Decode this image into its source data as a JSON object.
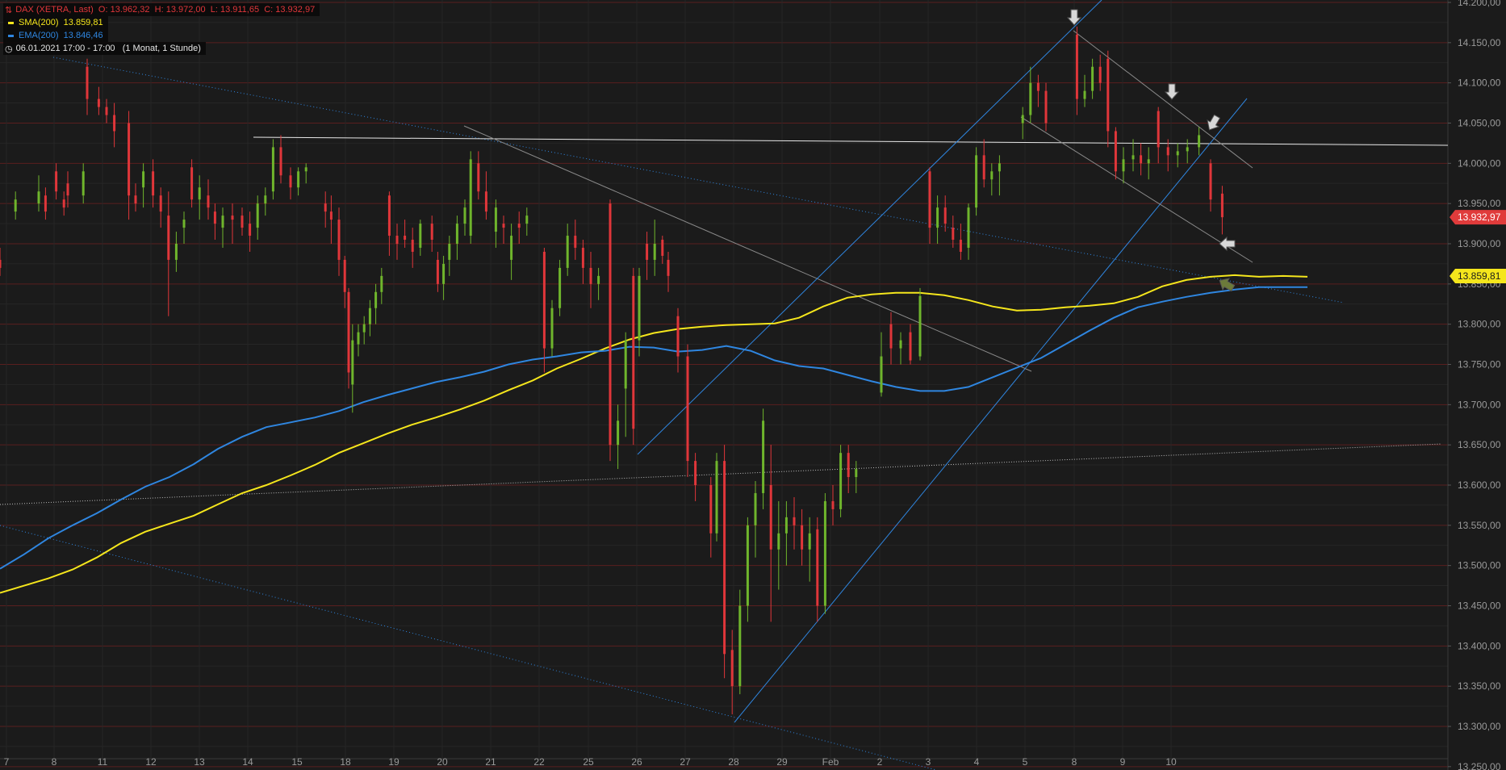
{
  "legend": {
    "instrument": "DAX (XETRA, Last)",
    "ohlc": "O: 13.962,32  H: 13.972,00  L: 13.911,65  C: 13.932,97",
    "sma_label": "SMA(200)",
    "sma_value": "13.859,81",
    "ema_label": "EMA(200)",
    "ema_value": "13.846,46",
    "period": "06.01.2021 17:00 - 17:00   (1 Monat, 1 Stunde)"
  },
  "colors": {
    "background": "#1b1b1b",
    "up": "#6fb52c",
    "down": "#e0363a",
    "sma": "#f5e61c",
    "ema": "#2f86e0",
    "price_badge": "#e03b3b",
    "sma_badge": "#f5e61c",
    "gridline": "#5a1f1f"
  },
  "chart_data": {
    "type": "candlestick",
    "title": "DAX (XETRA, Last)",
    "y_ticks": [
      "14.200,00",
      "14.150,00",
      "14.100,00",
      "14.050,00",
      "14.000,00",
      "13.950,00",
      "13.900,00",
      "13.850,00",
      "13.800,00",
      "13.750,00",
      "13.700,00",
      "13.650,00",
      "13.600,00",
      "13.550,00",
      "13.500,00",
      "13.450,00",
      "13.400,00",
      "13.350,00",
      "13.300,00",
      "13.250,00"
    ],
    "y_tick_values": [
      14200,
      14150,
      14100,
      14050,
      14000,
      13950,
      13900,
      13850,
      13800,
      13750,
      13700,
      13650,
      13600,
      13550,
      13500,
      13450,
      13400,
      13350,
      13300,
      13250
    ],
    "ylim": [
      13245,
      14208
    ],
    "x_ticks": [
      "7",
      "8",
      "11",
      "12",
      "13",
      "14",
      "15",
      "18",
      "19",
      "20",
      "21",
      "22",
      "25",
      "26",
      "27",
      "28",
      "29",
      "Feb",
      "2",
      "3",
      "4",
      "5",
      "8",
      "9",
      "10"
    ],
    "last_price": {
      "label": "13.932,97",
      "value": 13932.97
    },
    "sma_marker": {
      "label": "13.859,81",
      "value": 13859.81
    },
    "ohlc": {
      "open": 13962.32,
      "high": 13972.0,
      "low": 13911.65,
      "close": 13932.97
    },
    "series": [
      {
        "name": "SMA(200)",
        "values": [
          13466,
          13475,
          13484,
          13495,
          13510,
          13528,
          13542,
          13552,
          13562,
          13576,
          13590,
          13600,
          13612,
          13625,
          13640,
          13652,
          13664,
          13675,
          13684,
          13694,
          13705,
          13718,
          13730,
          13745,
          13757,
          13770,
          13781,
          13789,
          13794,
          13797,
          13799,
          13800,
          13801,
          13808,
          13822,
          13833,
          13837,
          13839,
          13839,
          13836,
          13830,
          13822,
          13817,
          13818,
          13821,
          13823,
          13826,
          13834,
          13847,
          13855,
          13859,
          13861,
          13859,
          13860,
          13859
        ]
      },
      {
        "name": "EMA(200)",
        "values": [
          13496,
          13514,
          13534,
          13550,
          13565,
          13582,
          13598,
          13610,
          13626,
          13645,
          13660,
          13672,
          13678,
          13684,
          13692,
          13703,
          13712,
          13720,
          13728,
          13734,
          13741,
          13750,
          13756,
          13760,
          13765,
          13767,
          13772,
          13771,
          13766,
          13768,
          13773,
          13767,
          13755,
          13748,
          13745,
          13737,
          13729,
          13722,
          13717,
          13717,
          13722,
          13734,
          13746,
          13758,
          13775,
          13792,
          13808,
          13821,
          13828,
          13834,
          13839,
          13843,
          13846,
          13846,
          13846
        ]
      }
    ],
    "candles": [
      [
        13880,
        13895,
        13860,
        13870
      ],
      [
        13940,
        13965,
        13930,
        13955
      ],
      [
        13950,
        13985,
        13940,
        13965
      ],
      [
        13960,
        13970,
        13930,
        13940
      ],
      [
        13990,
        14000,
        13955,
        13965
      ],
      [
        13955,
        13965,
        13935,
        13945
      ],
      [
        13975,
        13990,
        13945,
        13960
      ],
      [
        13960,
        14000,
        13950,
        13990
      ],
      [
        14120,
        14130,
        14060,
        14080
      ],
      [
        14080,
        14095,
        14060,
        14070
      ],
      [
        14070,
        14080,
        14050,
        14060
      ],
      [
        14060,
        14075,
        14020,
        14040
      ],
      [
        14050,
        14065,
        13930,
        13960
      ],
      [
        13960,
        13975,
        13940,
        13950
      ],
      [
        13970,
        14000,
        13945,
        13990
      ],
      [
        13990,
        14005,
        13945,
        13960
      ],
      [
        13960,
        13970,
        13920,
        13940
      ],
      [
        13935,
        13965,
        13810,
        13880
      ],
      [
        13880,
        13915,
        13865,
        13900
      ],
      [
        13920,
        13940,
        13900,
        13930
      ],
      [
        13995,
        14005,
        13945,
        13955
      ],
      [
        13955,
        13985,
        13930,
        13970
      ],
      [
        13960,
        13980,
        13930,
        13945
      ],
      [
        13940,
        13950,
        13905,
        13925
      ],
      [
        13920,
        13945,
        13895,
        13935
      ],
      [
        13935,
        13950,
        13900,
        13930
      ],
      [
        13935,
        13945,
        13910,
        13920
      ],
      [
        13925,
        13940,
        13890,
        13910
      ],
      [
        13920,
        13960,
        13905,
        13950
      ],
      [
        13950,
        13970,
        13935,
        13960
      ],
      [
        13965,
        14030,
        13955,
        14020
      ],
      [
        14020,
        14035,
        13975,
        13985
      ],
      [
        13985,
        13995,
        13955,
        13970
      ],
      [
        13970,
        13995,
        13960,
        13990
      ],
      [
        13990,
        14000,
        13975,
        13995
      ],
      [
        13950,
        13965,
        13920,
        13940
      ],
      [
        13940,
        13960,
        13900,
        13930
      ],
      [
        13930,
        13945,
        13860,
        13880
      ],
      [
        13880,
        13885,
        13820,
        13840
      ],
      [
        13840,
        13845,
        13720,
        13740
      ],
      [
        13725,
        13800,
        13690,
        13780
      ],
      [
        13775,
        13800,
        13760,
        13790
      ],
      [
        13790,
        13810,
        13775,
        13800
      ],
      [
        13800,
        13830,
        13785,
        13820
      ],
      [
        13820,
        13850,
        13800,
        13840
      ],
      [
        13840,
        13870,
        13825,
        13860
      ],
      [
        13960,
        13965,
        13885,
        13910
      ],
      [
        13910,
        13925,
        13880,
        13900
      ],
      [
        13910,
        13930,
        13895,
        13905
      ],
      [
        13905,
        13920,
        13870,
        13890
      ],
      [
        13895,
        13930,
        13885,
        13925
      ],
      [
        13925,
        13935,
        13890,
        13905
      ],
      [
        13880,
        13890,
        13840,
        13850
      ],
      [
        13850,
        13885,
        13830,
        13875
      ],
      [
        13880,
        13910,
        13860,
        13900
      ],
      [
        13900,
        13935,
        13880,
        13925
      ],
      [
        13925,
        13955,
        13910,
        13945
      ],
      [
        13910,
        14015,
        13900,
        14005
      ],
      [
        14000,
        14015,
        13955,
        13965
      ],
      [
        13965,
        13990,
        13930,
        13940
      ],
      [
        13915,
        13955,
        13895,
        13945
      ],
      [
        13925,
        13935,
        13900,
        13920
      ],
      [
        13880,
        13925,
        13855,
        13910
      ],
      [
        13925,
        13940,
        13900,
        13920
      ],
      [
        13925,
        13945,
        13910,
        13935
      ],
      [
        13890,
        13895,
        13740,
        13770
      ],
      [
        13770,
        13830,
        13760,
        13820
      ],
      [
        13820,
        13880,
        13810,
        13870
      ],
      [
        13870,
        13925,
        13860,
        13910
      ],
      [
        13910,
        13930,
        13880,
        13895
      ],
      [
        13895,
        13905,
        13850,
        13870
      ],
      [
        13870,
        13890,
        13820,
        13850
      ],
      [
        13850,
        13870,
        13830,
        13860
      ],
      [
        13950,
        13955,
        13630,
        13650
      ],
      [
        13650,
        13700,
        13620,
        13680
      ],
      [
        13720,
        13790,
        13660,
        13780
      ],
      [
        13860,
        13870,
        13650,
        13670
      ],
      [
        13780,
        13870,
        13760,
        13860
      ],
      [
        13900,
        13915,
        13855,
        13880
      ],
      [
        13880,
        13930,
        13860,
        13900
      ],
      [
        13905,
        13910,
        13875,
        13885
      ],
      [
        13880,
        13890,
        13840,
        13860
      ],
      [
        13810,
        13820,
        13740,
        13760
      ],
      [
        13760,
        13775,
        13610,
        13630
      ],
      [
        13630,
        13640,
        13580,
        13600
      ],
      [
        13600,
        13610,
        13510,
        13540
      ],
      [
        13540,
        13640,
        13530,
        13630
      ],
      [
        13630,
        13650,
        13360,
        13390
      ],
      [
        13395,
        13420,
        13315,
        13350
      ],
      [
        13350,
        13470,
        13340,
        13450
      ],
      [
        13450,
        13560,
        13430,
        13550
      ],
      [
        13550,
        13605,
        13510,
        13590
      ],
      [
        13590,
        13695,
        13570,
        13680
      ],
      [
        13600,
        13650,
        13430,
        13520
      ],
      [
        13520,
        13580,
        13470,
        13540
      ],
      [
        13540,
        13580,
        13500,
        13560
      ],
      [
        13560,
        13585,
        13520,
        13550
      ],
      [
        13550,
        13570,
        13500,
        13520
      ],
      [
        13520,
        13560,
        13480,
        13540
      ],
      [
        13545,
        13560,
        13430,
        13450
      ],
      [
        13450,
        13590,
        13440,
        13580
      ],
      [
        13580,
        13600,
        13550,
        13570
      ],
      [
        13570,
        13650,
        13560,
        13640
      ],
      [
        13640,
        13650,
        13590,
        13610
      ],
      [
        13610,
        13630,
        13590,
        13620
      ],
      [
        13715,
        13790,
        13710,
        13760
      ],
      [
        13800,
        13815,
        13750,
        13770
      ],
      [
        13770,
        13790,
        13750,
        13780
      ],
      [
        13790,
        13800,
        13750,
        13755
      ],
      [
        13760,
        13845,
        13755,
        13835
      ],
      [
        13990,
        13995,
        13900,
        13920
      ],
      [
        13920,
        13960,
        13900,
        13945
      ],
      [
        13945,
        13960,
        13915,
        13925
      ],
      [
        13920,
        13935,
        13895,
        13905
      ],
      [
        13905,
        13925,
        13880,
        13890
      ],
      [
        13895,
        13950,
        13880,
        13945
      ],
      [
        13945,
        14020,
        13935,
        14010
      ],
      [
        14010,
        14030,
        13970,
        13980
      ],
      [
        13980,
        14000,
        13960,
        13990
      ],
      [
        13990,
        14010,
        13960,
        14000
      ],
      [
        14050,
        14070,
        14030,
        14060
      ],
      [
        14060,
        14120,
        14050,
        14100
      ],
      [
        14100,
        14110,
        14070,
        14090
      ],
      [
        14090,
        14100,
        14040,
        14050
      ],
      [
        14160,
        14170,
        14060,
        14080
      ],
      [
        14080,
        14110,
        14070,
        14090
      ],
      [
        14090,
        14130,
        14080,
        14120
      ],
      [
        14120,
        14135,
        14090,
        14100
      ],
      [
        14130,
        14140,
        14020,
        14040
      ],
      [
        14040,
        14045,
        13980,
        13990
      ],
      [
        13990,
        14020,
        13975,
        14005
      ],
      [
        14005,
        14030,
        13990,
        14010
      ],
      [
        14010,
        14025,
        13985,
        14000
      ],
      [
        14000,
        14020,
        13980,
        14005
      ],
      [
        14065,
        14070,
        14000,
        14020
      ],
      [
        14020,
        14030,
        13990,
        14010
      ],
      [
        14010,
        14025,
        13995,
        14015
      ],
      [
        14015,
        14030,
        14000,
        14020
      ],
      [
        14020,
        14045,
        14010,
        14035
      ],
      [
        14000,
        14005,
        13940,
        13955
      ],
      [
        13962.32,
        13972.0,
        13911.65,
        13932.97
      ]
    ],
    "candle_x": [
      0,
      16,
      40,
      47,
      58,
      66,
      70,
      86,
      90,
      102,
      110,
      118,
      133,
      140,
      148,
      158,
      166,
      174,
      182,
      190,
      198,
      206,
      215,
      222,
      230,
      240,
      250,
      258,
      266,
      274,
      282,
      290,
      300,
      308,
      316,
      336,
      342,
      350,
      356,
      360,
      364,
      370,
      376,
      382,
      388,
      394,
      402,
      410,
      418,
      426,
      434,
      446,
      452,
      458,
      464,
      472,
      480,
      486,
      494,
      502,
      512,
      520,
      528,
      536,
      544,
      562,
      570,
      578,
      586,
      594,
      602,
      610,
      618,
      630,
      638,
      646,
      654,
      660,
      668,
      676,
      684,
      690,
      700,
      710,
      718,
      734,
      740,
      748,
      756,
      764,
      772,
      780,
      788,
      796,
      804,
      812,
      820,
      828,
      836,
      844,
      852,
      860,
      868,
      876,
      884,
      910,
      920,
      930,
      940,
      950,
      960,
      968,
      976,
      984,
      992,
      1000,
      1008,
      1016,
      1024,
      1032,
      1056,
      1064,
      1072,
      1080,
      1112,
      1120,
      1128,
      1136,
      1144,
      1152,
      1160,
      1170,
      1178,
      1186,
      1196,
      1206,
      1216,
      1226,
      1238,
      1250,
      1262
    ],
    "line_x": [
      0,
      20,
      40,
      60,
      80,
      100,
      120,
      140,
      160,
      180,
      200,
      220,
      240,
      260,
      280,
      300,
      320,
      340,
      360,
      380,
      400,
      420,
      440,
      460,
      480,
      500,
      520,
      540,
      560,
      580,
      600,
      620,
      640,
      660,
      680,
      700,
      720,
      740,
      760,
      780,
      800,
      820,
      840,
      860,
      880,
      900,
      920,
      940,
      960,
      980,
      1000,
      1020,
      1040,
      1060,
      1080
    ]
  }
}
